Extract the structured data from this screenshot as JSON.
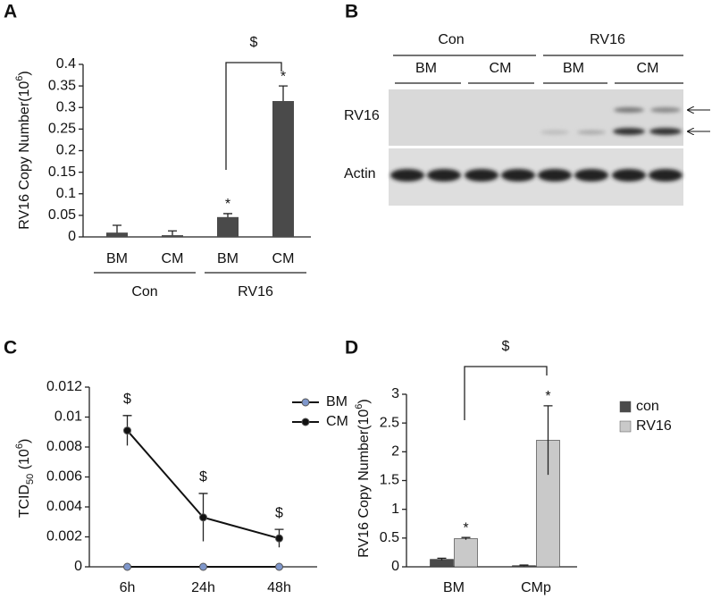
{
  "chart_data": [
    {
      "type": "bar",
      "panel_label": "A",
      "ylabel": [
        "RV16 Copy Number(10",
        "6",
        ")"
      ],
      "categories": [
        "BM",
        "CM",
        "BM",
        "CM"
      ],
      "group_labels": [
        "Con",
        "RV16"
      ],
      "values": [
        0.01,
        0.004,
        0.046,
        0.315
      ],
      "errors": [
        0.017,
        0.01,
        0.008,
        0.035
      ],
      "color": "#4a4a4a",
      "markers": [
        null,
        null,
        "*",
        "*"
      ],
      "bracket_label": "$",
      "ylim": [
        0,
        0.4
      ],
      "yticks": [
        0,
        0.05,
        0.1,
        0.15,
        0.2,
        0.25,
        0.3,
        0.35,
        0.4
      ]
    },
    {
      "type": "line",
      "panel_label": "C",
      "ylabel": [
        "TCID",
        "50",
        " (10",
        "6",
        ")"
      ],
      "categories": [
        "6h",
        "24h",
        "48h"
      ],
      "series": [
        {
          "name": "BM",
          "color": "#7f97cc",
          "values": [
            0,
            0,
            0
          ]
        },
        {
          "name": "CM",
          "color": "#111111",
          "values": [
            0.0091,
            0.0033,
            0.0019
          ],
          "errors": [
            0.001,
            0.0016,
            0.0006
          ],
          "markers": [
            "$",
            "$",
            "$"
          ]
        }
      ],
      "ylim": [
        0,
        0.012
      ],
      "yticks": [
        0,
        0.002,
        0.004,
        0.006,
        0.008,
        0.01,
        0.012
      ]
    },
    {
      "type": "bar",
      "panel_label": "D",
      "ylabel": [
        "RV16 Copy Number(10",
        "6",
        ")"
      ],
      "categories": [
        "BM",
        "CMp"
      ],
      "bracket_label": "$",
      "series": [
        {
          "name": "con",
          "color": "#4a4a4a",
          "values": [
            0.13,
            0.02
          ],
          "errors": [
            0.02,
            0.01
          ]
        },
        {
          "name": "RV16",
          "color": "#c9c9c9",
          "values": [
            0.49,
            2.2
          ],
          "errors": [
            0.02,
            0.6
          ],
          "markers": [
            "*",
            "*"
          ]
        }
      ],
      "ylim": [
        0,
        3
      ],
      "yticks": [
        0,
        0.5,
        1,
        1.5,
        2,
        2.5,
        3
      ]
    }
  ],
  "panel_b": {
    "panel_label": "B",
    "header": [
      "Con",
      "RV16"
    ],
    "lanes": [
      "BM",
      "CM",
      "BM",
      "CM"
    ],
    "rows": [
      "RV16",
      "Actin"
    ]
  }
}
